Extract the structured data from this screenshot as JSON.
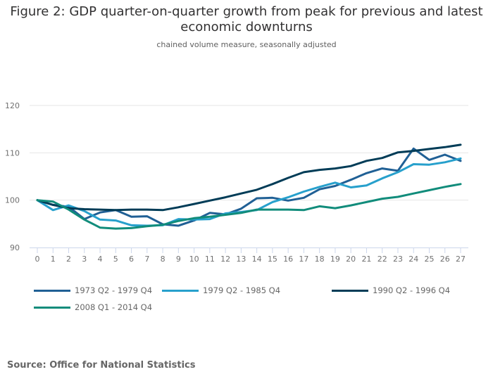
{
  "chart_data": {
    "type": "line",
    "title": "Figure 2: GDP quarter-on-quarter growth from peak for previous and latest economic downturns",
    "subtitle": "chained volume measure, seasonally adjusted",
    "xlabel": "",
    "ylabel": "",
    "x": [
      0,
      1,
      2,
      3,
      4,
      5,
      6,
      7,
      8,
      9,
      10,
      11,
      12,
      13,
      14,
      15,
      16,
      17,
      18,
      19,
      20,
      21,
      22,
      23,
      24,
      25,
      26,
      27
    ],
    "ylim": [
      90,
      120
    ],
    "yticks": [
      90,
      100,
      110,
      120
    ],
    "grid": true,
    "legend_position": "bottom",
    "series": [
      {
        "name": "1973 Q2 - 1979 Q4",
        "color": "#206095",
        "values": [
          100,
          99.0,
          98.6,
          96.0,
          97.4,
          97.9,
          96.5,
          96.6,
          94.9,
          94.6,
          95.7,
          97.3,
          97.0,
          98.2,
          100.4,
          100.5,
          99.9,
          100.5,
          102.3,
          103.0,
          104.3,
          105.7,
          106.7,
          106.2,
          110.9,
          108.5,
          109.6,
          108.3
        ]
      },
      {
        "name": "1979 Q2 - 1985 Q4",
        "color": "#27a0cc",
        "values": [
          100,
          97.9,
          98.9,
          97.7,
          95.9,
          95.7,
          94.7,
          94.6,
          94.7,
          96.0,
          95.9,
          96.0,
          97.2,
          97.5,
          97.9,
          99.6,
          100.6,
          101.8,
          102.8,
          103.7,
          102.7,
          103.1,
          104.6,
          105.9,
          107.6,
          107.5,
          108.0,
          108.8
        ]
      },
      {
        "name": "1990 Q2 - 1996 Q4",
        "color": "#003c57",
        "values": [
          100,
          99.0,
          98.3,
          98.1,
          98.0,
          97.9,
          98.0,
          98.0,
          97.9,
          98.5,
          99.2,
          99.9,
          100.6,
          101.4,
          102.2,
          103.4,
          104.7,
          105.9,
          106.4,
          106.7,
          107.2,
          108.3,
          108.9,
          110.1,
          110.4,
          110.8,
          111.2,
          111.7
        ]
      },
      {
        "name": "2008 Q1 - 2014 Q4",
        "color": "#118c7b",
        "values": [
          100,
          99.7,
          98.0,
          95.9,
          94.2,
          94.0,
          94.1,
          94.5,
          94.8,
          95.6,
          96.2,
          96.5,
          96.9,
          97.3,
          98.0,
          98.0,
          98.0,
          97.9,
          98.7,
          98.3,
          98.9,
          99.6,
          100.3,
          100.7,
          101.4,
          102.1,
          102.8,
          103.4
        ]
      }
    ]
  },
  "source": "Source: Office for National Statistics"
}
